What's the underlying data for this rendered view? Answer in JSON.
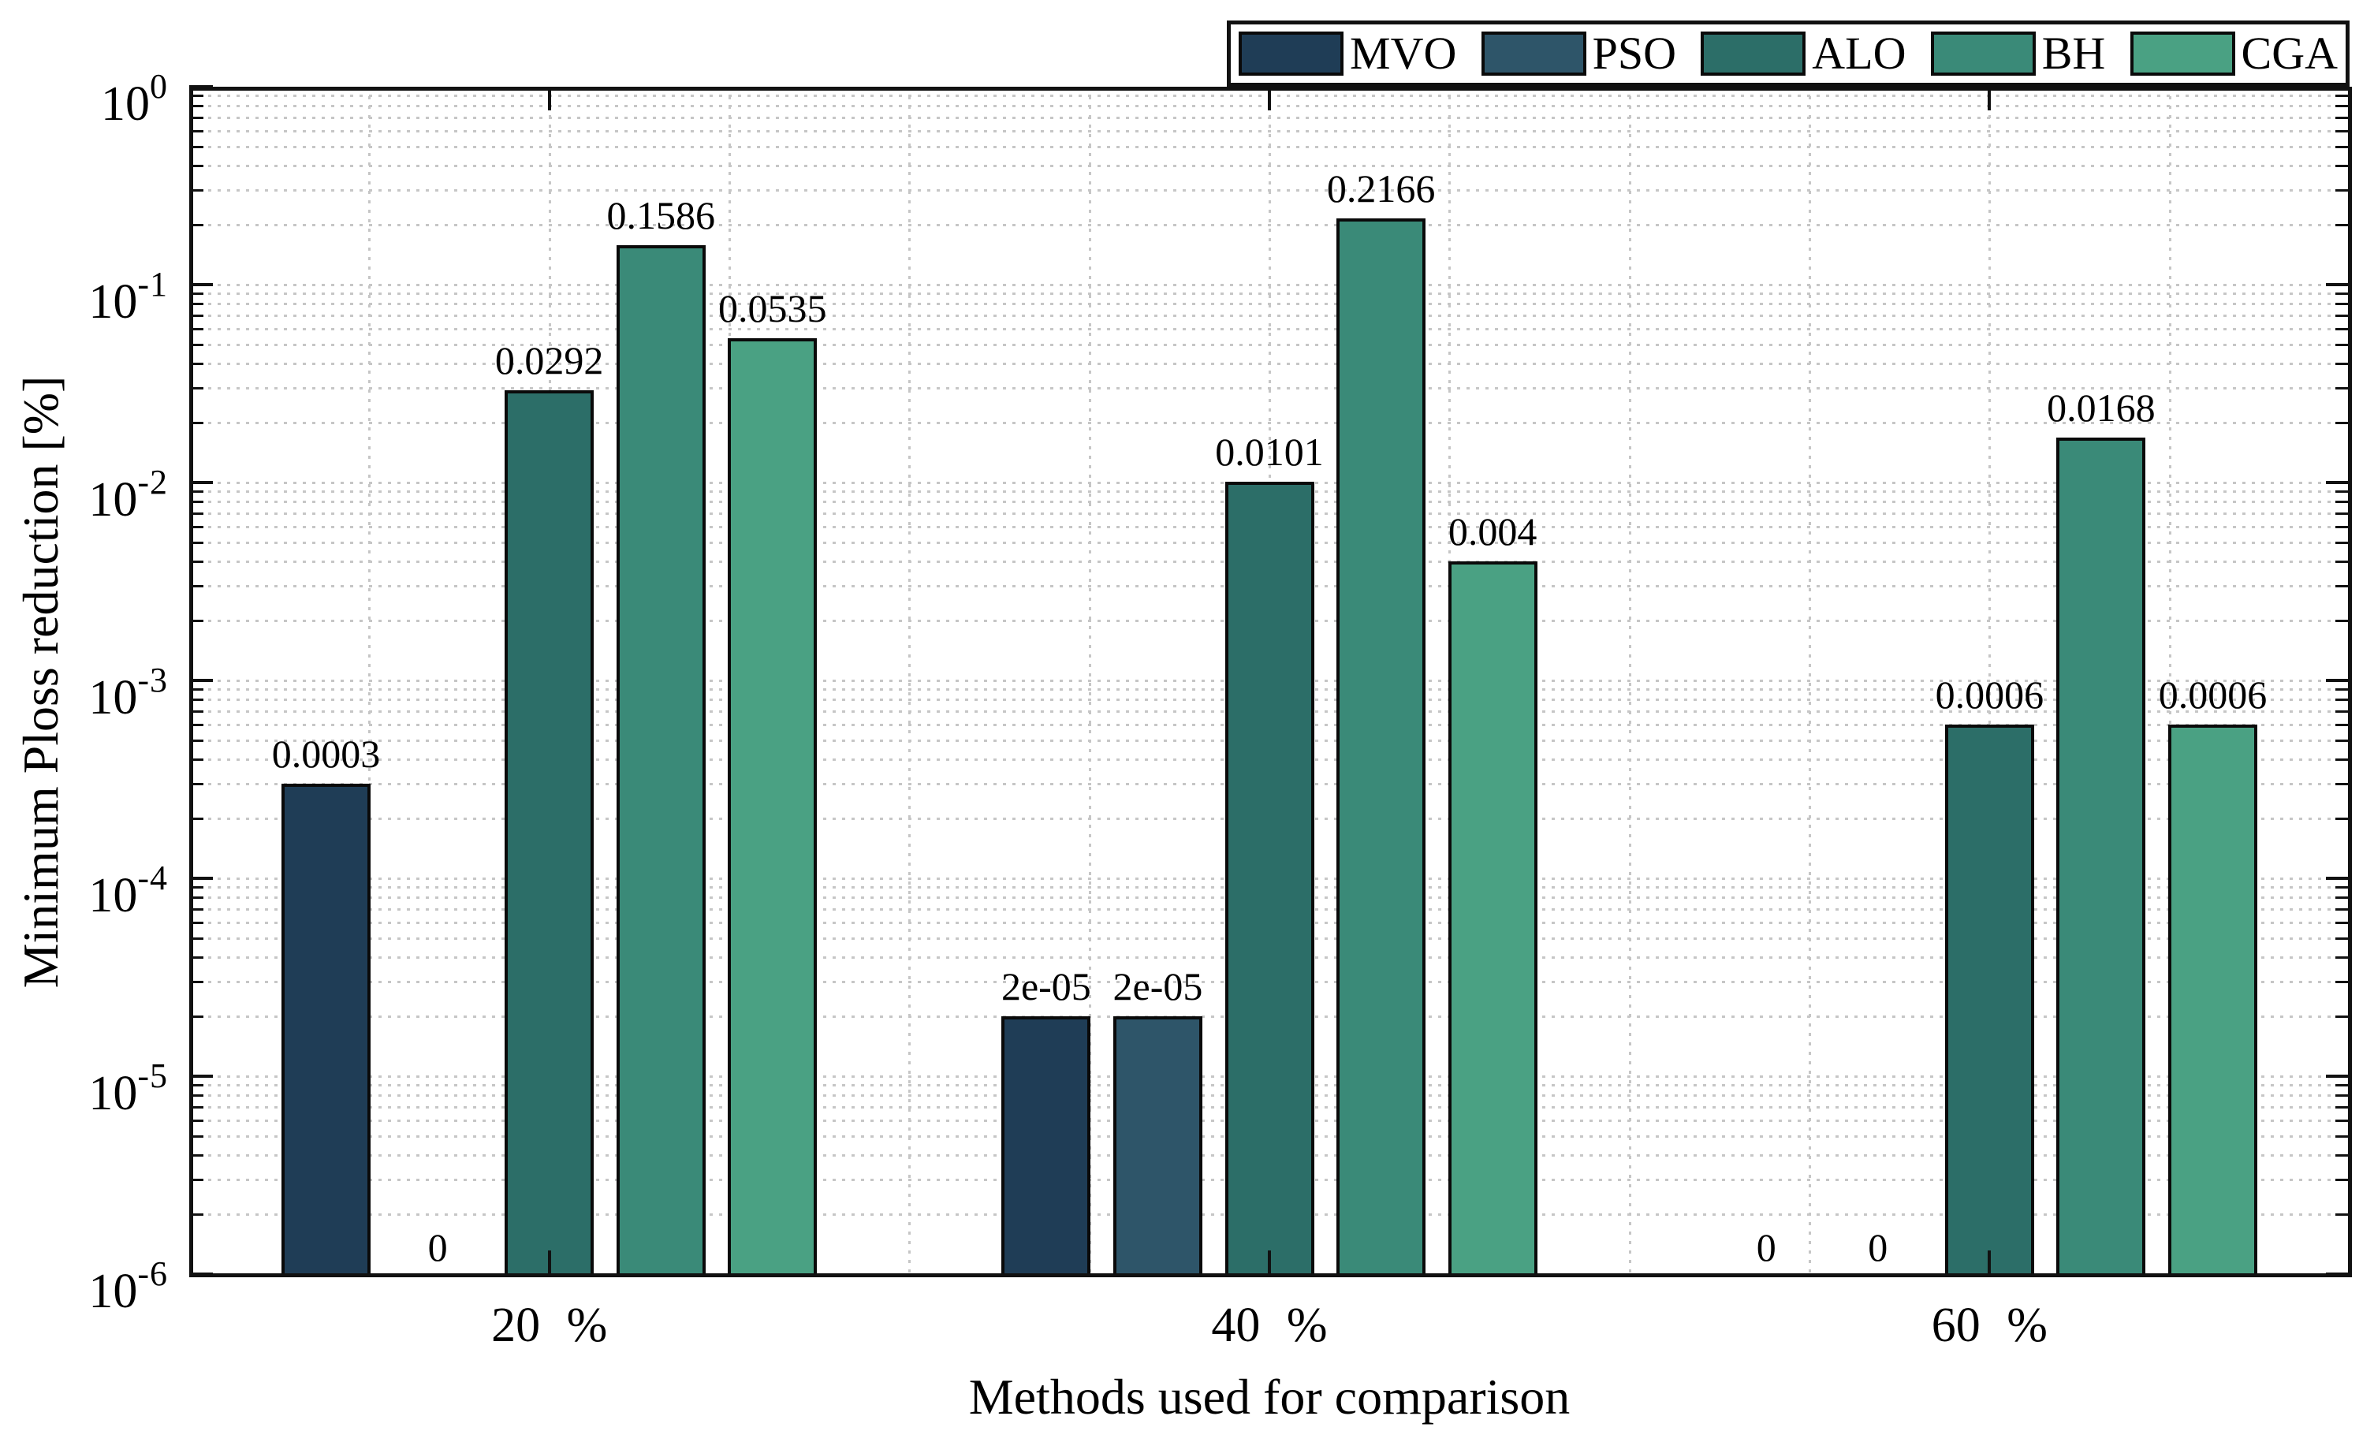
{
  "chart_data": {
    "type": "bar",
    "title": "",
    "xlabel": "Methods used for comparison",
    "ylabel": "Minimum Ploss reduction [%]",
    "categories": [
      "20 %",
      "40 %",
      "60 %"
    ],
    "series": [
      {
        "name": "MVO",
        "color": "#1f3d56",
        "values": [
          0.0003,
          2e-05,
          0
        ],
        "labels": [
          "0.0003",
          "2e-05",
          "0"
        ]
      },
      {
        "name": "PSO",
        "color": "#2e5569",
        "values": [
          0,
          2e-05,
          0
        ],
        "labels": [
          "0",
          "2e-05",
          "0"
        ]
      },
      {
        "name": "ALO",
        "color": "#2c6e68",
        "values": [
          0.0292,
          0.0101,
          0.0006
        ],
        "labels": [
          "0.0292",
          "0.0101",
          "0.0006"
        ]
      },
      {
        "name": "BH",
        "color": "#3a8a78",
        "values": [
          0.1586,
          0.2166,
          0.0168
        ],
        "labels": [
          "0.1586",
          "0.2166",
          "0.0168"
        ]
      },
      {
        "name": "CGA",
        "color": "#4aa183",
        "values": [
          0.0535,
          0.004,
          0.0006
        ],
        "labels": [
          "0.0535",
          "0.004",
          "0.0006"
        ]
      }
    ],
    "y_axis": {
      "scale": "log",
      "ylim": [
        1e-06,
        1
      ],
      "tick_base": "10",
      "tick_exponents": [
        "0",
        "-1",
        "-2",
        "-3",
        "-4",
        "-5",
        "-6"
      ]
    },
    "x_axis": {
      "tick_values": [
        1,
        2,
        3
      ]
    },
    "legend": {
      "position": "top-right",
      "entries": [
        "MVO",
        "PSO",
        "ALO",
        "BH",
        "CGA"
      ]
    },
    "grid": {
      "horizontal": "log-minor-dotted",
      "vertical_step_units": 0.25,
      "color": "#c6c6c6"
    }
  }
}
